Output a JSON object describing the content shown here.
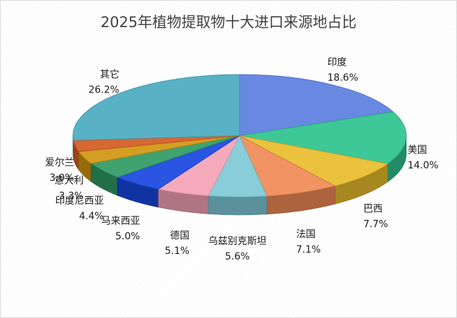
{
  "chart_data": {
    "type": "pie",
    "title": "2025年植物提取物十大进口来源地占比",
    "categories": [
      "印度",
      "美国",
      "巴西",
      "法国",
      "乌兹别克斯坦",
      "德国",
      "马来西亚",
      "印度尼西亚",
      "意大利",
      "爱尔兰",
      "其它"
    ],
    "values": [
      18.6,
      14.0,
      7.7,
      7.1,
      5.6,
      5.1,
      5.0,
      4.4,
      3.3,
      3.0,
      26.2
    ],
    "value_labels": [
      "18.6%",
      "14.0%",
      "7.7%",
      "7.1%",
      "5.6%",
      "5.1%",
      "5.0%",
      "4.4%",
      "3.3%",
      "3.0%",
      "26.2%"
    ],
    "colors": [
      "#5b7ee0",
      "#2ec28e",
      "#e8bd2c",
      "#f08a55",
      "#7fc9d6",
      "#f4a3b6",
      "#1747e0",
      "#2f9a63",
      "#d0960f",
      "#d45a22",
      "#4aaabf"
    ],
    "legend": "none",
    "style": "3d-pie"
  }
}
